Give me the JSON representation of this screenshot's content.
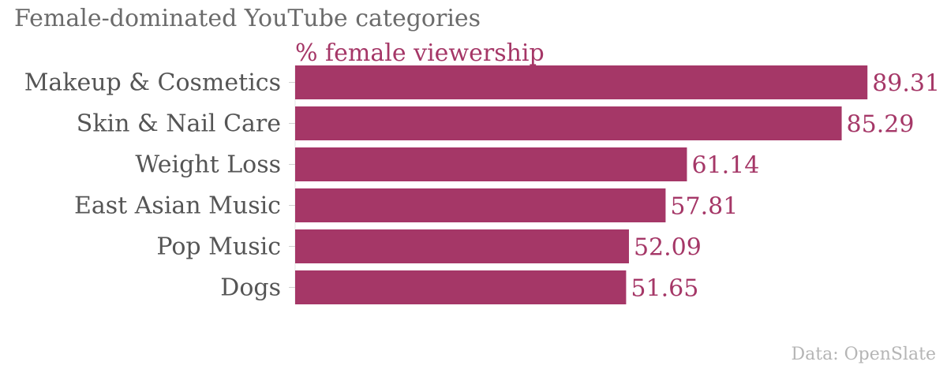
{
  "chart_data": {
    "type": "bar",
    "orientation": "horizontal",
    "title": "Female-dominated YouTube categories",
    "subtitle": "% female viewership",
    "categories": [
      "Makeup & Cosmetics",
      "Skin & Nail Care",
      "Weight Loss",
      "East Asian Music",
      "Pop Music",
      "Dogs"
    ],
    "values": [
      89.31,
      85.29,
      61.14,
      57.81,
      52.09,
      51.65
    ],
    "value_labels": [
      "89.31",
      "85.29",
      "61.14",
      "57.81",
      "52.09",
      "51.65"
    ],
    "xlim": [
      0,
      100
    ],
    "grid": false,
    "source": "Data: OpenSlate"
  },
  "colors": {
    "bar": "#a53767",
    "title": "#6b6b6b",
    "category_text": "#555555",
    "source_text": "#b5b5b5"
  }
}
